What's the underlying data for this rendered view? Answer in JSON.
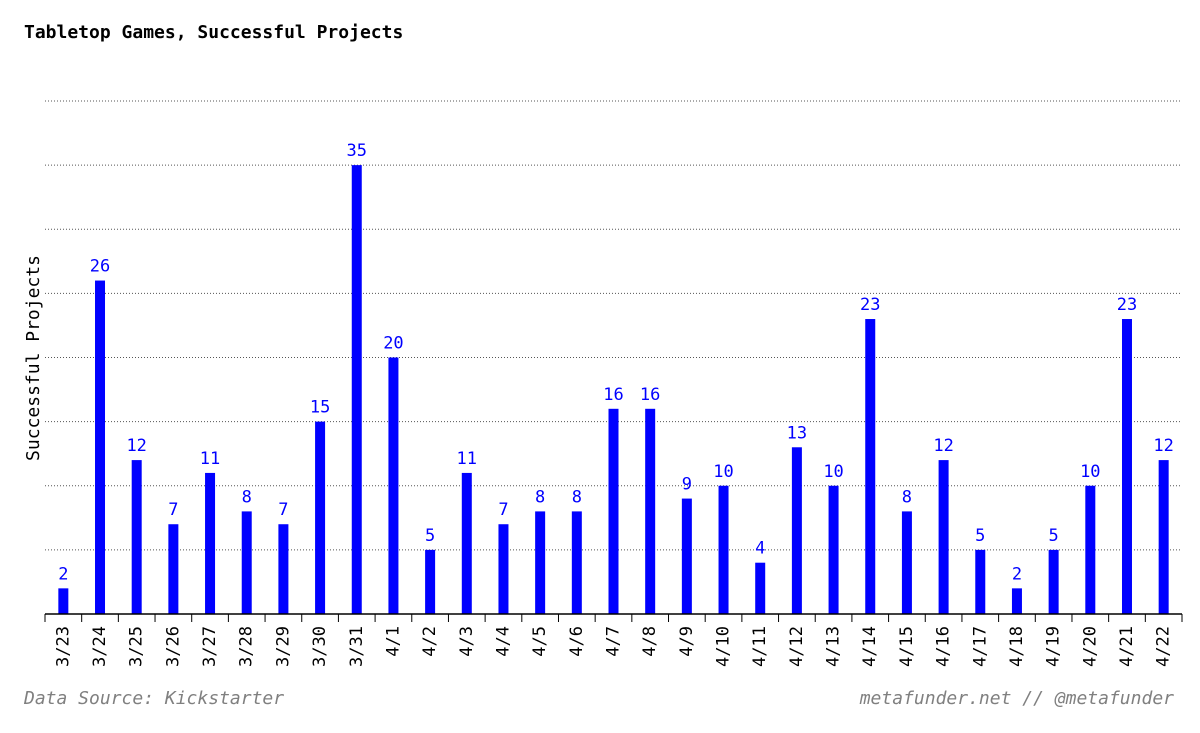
{
  "chart_data": {
    "type": "bar",
    "title": "Tabletop Games, Successful Projects",
    "ylabel": "Successful Projects",
    "xlabel": "",
    "categories": [
      "3/23",
      "3/24",
      "3/25",
      "3/26",
      "3/27",
      "3/28",
      "3/29",
      "3/30",
      "3/31",
      "4/1",
      "4/2",
      "4/3",
      "4/4",
      "4/5",
      "4/6",
      "4/7",
      "4/8",
      "4/9",
      "4/10",
      "4/11",
      "4/12",
      "4/13",
      "4/14",
      "4/15",
      "4/16",
      "4/17",
      "4/18",
      "4/19",
      "4/20",
      "4/21",
      "4/22"
    ],
    "values": [
      2,
      26,
      12,
      7,
      11,
      8,
      7,
      15,
      35,
      20,
      5,
      11,
      7,
      8,
      8,
      16,
      16,
      9,
      10,
      4,
      13,
      10,
      23,
      8,
      12,
      5,
      2,
      5,
      10,
      23,
      12
    ],
    "ylim": [
      0,
      40
    ],
    "y_gridlines": [
      5,
      10,
      15,
      20,
      25,
      30,
      35,
      40
    ],
    "grid": "horizontal-dotted",
    "y_tick_labels_shown": false,
    "data_labels_shown": true,
    "bar_color": "#0000ff",
    "label_color": "#0000ff",
    "grid_color": "#555555"
  },
  "footer": {
    "source": "Data Source: Kickstarter",
    "credit": "metafunder.net // @metafunder"
  }
}
